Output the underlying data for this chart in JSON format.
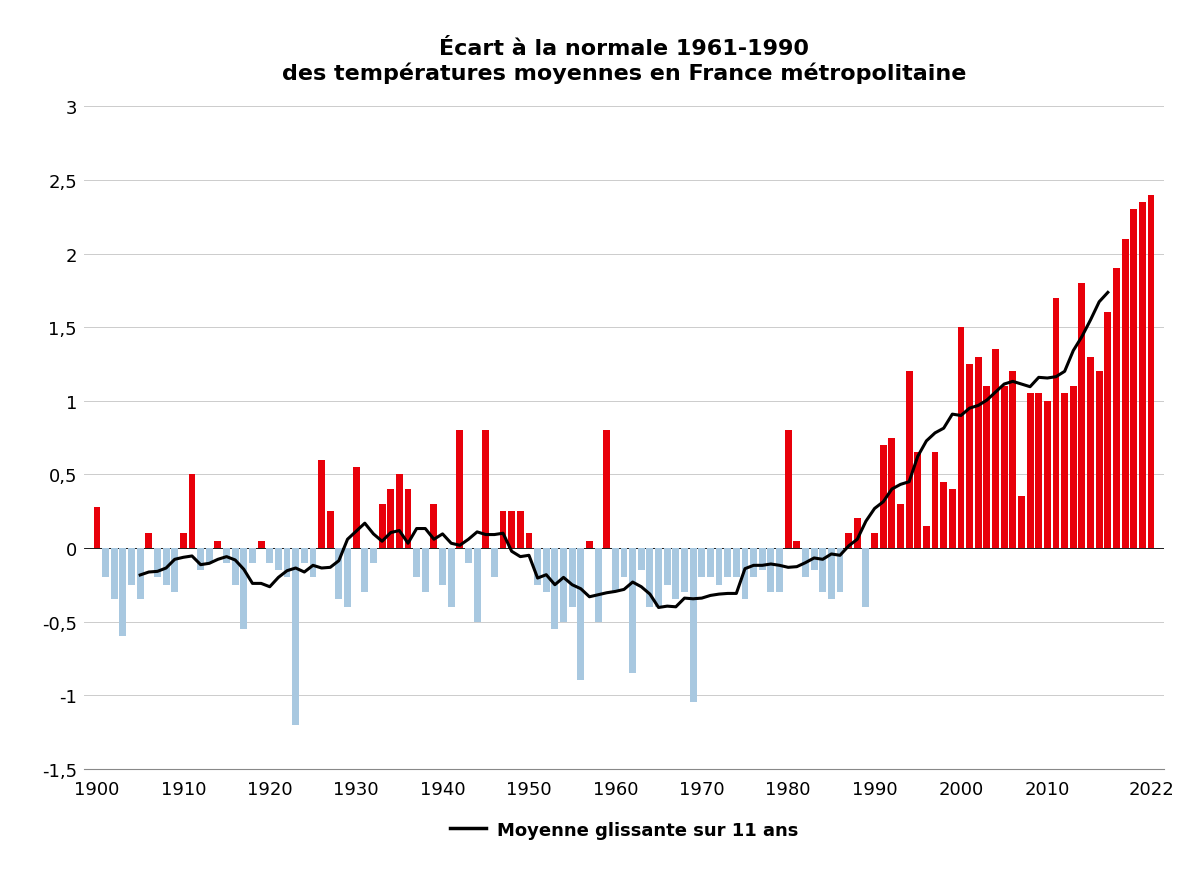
{
  "title_line1": "Écart à la normale 1961-1990",
  "title_line2": "des températures moyennes en France métropolitaine",
  "legend_label": "Moyenne glissante sur 11 ans",
  "years": [
    1900,
    1901,
    1902,
    1903,
    1904,
    1905,
    1906,
    1907,
    1908,
    1909,
    1910,
    1911,
    1912,
    1913,
    1914,
    1915,
    1916,
    1917,
    1918,
    1919,
    1920,
    1921,
    1922,
    1923,
    1924,
    1925,
    1926,
    1927,
    1928,
    1929,
    1930,
    1931,
    1932,
    1933,
    1934,
    1935,
    1936,
    1937,
    1938,
    1939,
    1940,
    1941,
    1942,
    1943,
    1944,
    1945,
    1946,
    1947,
    1948,
    1949,
    1950,
    1951,
    1952,
    1953,
    1954,
    1955,
    1956,
    1957,
    1958,
    1959,
    1960,
    1961,
    1962,
    1963,
    1964,
    1965,
    1966,
    1967,
    1968,
    1969,
    1970,
    1971,
    1972,
    1973,
    1974,
    1975,
    1976,
    1977,
    1978,
    1979,
    1980,
    1981,
    1982,
    1983,
    1984,
    1985,
    1986,
    1987,
    1988,
    1989,
    1990,
    1991,
    1992,
    1993,
    1994,
    1995,
    1996,
    1997,
    1998,
    1999,
    2000,
    2001,
    2002,
    2003,
    2004,
    2005,
    2006,
    2007,
    2008,
    2009,
    2010,
    2011,
    2012,
    2013,
    2014,
    2015,
    2016,
    2017,
    2018,
    2019,
    2020,
    2021,
    2022
  ],
  "values": [
    0.28,
    -0.2,
    -0.35,
    -0.6,
    -0.25,
    -0.35,
    0.1,
    -0.2,
    -0.25,
    -0.3,
    0.1,
    0.5,
    -0.15,
    -0.1,
    0.05,
    -0.1,
    -0.25,
    -0.55,
    -0.1,
    0.05,
    -0.1,
    -0.15,
    -0.2,
    -1.2,
    -0.1,
    -0.2,
    0.6,
    0.25,
    -0.35,
    -0.4,
    0.55,
    -0.3,
    -0.1,
    0.3,
    0.4,
    0.5,
    0.4,
    -0.2,
    -0.3,
    0.3,
    -0.25,
    -0.4,
    0.8,
    -0.1,
    -0.5,
    0.8,
    -0.2,
    0.25,
    0.25,
    0.25,
    0.1,
    -0.25,
    -0.3,
    -0.55,
    -0.5,
    -0.4,
    -0.9,
    0.05,
    -0.5,
    0.8,
    -0.3,
    -0.2,
    -0.85,
    -0.15,
    -0.4,
    -0.4,
    -0.25,
    -0.35,
    -0.3,
    -1.05,
    -0.2,
    -0.2,
    -0.25,
    -0.2,
    -0.2,
    -0.35,
    -0.2,
    -0.15,
    -0.3,
    -0.3,
    0.8,
    0.05,
    -0.2,
    -0.15,
    -0.3,
    -0.35,
    -0.3,
    0.1,
    0.2,
    -0.4,
    0.1,
    0.7,
    0.75,
    0.3,
    1.2,
    0.65,
    0.15,
    0.65,
    0.45,
    0.4,
    1.5,
    1.25,
    1.3,
    1.1,
    1.35,
    1.1,
    1.2,
    0.35,
    1.05,
    1.05,
    1.0,
    1.7,
    1.05,
    1.1,
    1.8,
    1.3,
    1.2,
    1.6,
    1.9,
    2.1,
    2.3,
    2.35,
    2.4
  ],
  "color_positive": "#e8000a",
  "color_negative": "#a8c8e0",
  "color_line": "#000000",
  "ylim": [
    -1.5,
    3.0
  ],
  "yticks": [
    -1.5,
    -1.0,
    -0.5,
    0.0,
    0.5,
    1.0,
    1.5,
    2.0,
    2.5,
    3.0
  ],
  "xticks": [
    1900,
    1910,
    1920,
    1930,
    1940,
    1950,
    1960,
    1970,
    1980,
    1990,
    2000,
    2010,
    2022
  ],
  "background_color": "#ffffff",
  "grid_color": "#cccccc",
  "rolling_window": 11
}
